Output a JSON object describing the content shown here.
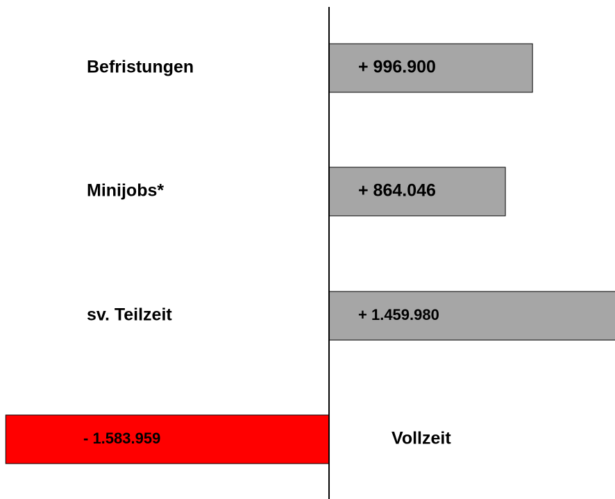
{
  "chart_data": {
    "type": "bar",
    "orientation": "horizontal",
    "categories": [
      "Befristungen",
      "Minijobs*",
      "sv. Teilzeit",
      "Vollzeit"
    ],
    "values": [
      996900,
      864046,
      1459980,
      -1583959
    ],
    "value_labels": [
      "+ 996.900",
      "+ 864.046",
      "+ 1.459.980",
      "- 1.583.959"
    ],
    "colors": [
      "#a6a6a6",
      "#a6a6a6",
      "#a6a6a6",
      "#ff0000"
    ],
    "xlim": [
      -1612000,
      1401000
    ]
  }
}
